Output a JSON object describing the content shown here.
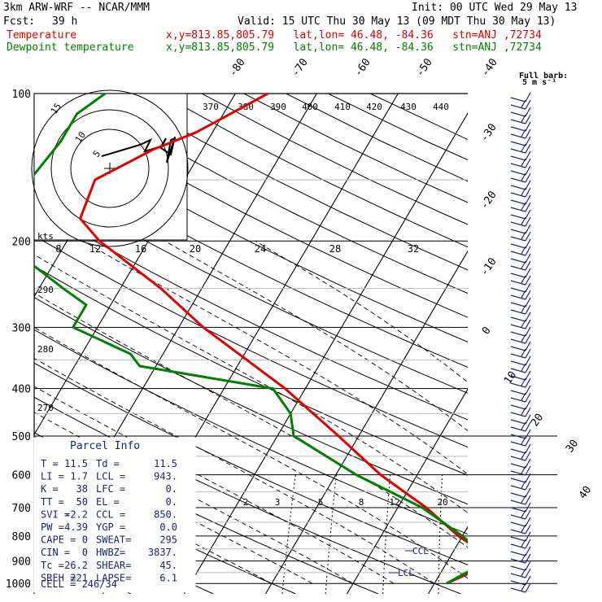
{
  "header": {
    "model": "3km ARW-WRF -- NCAR/MMM",
    "init": "Init: 00 UTC Wed 29 May 13",
    "fcst_label": "Fcst:",
    "fcst_value": "39 h",
    "valid": "Valid: 15 UTC Thu 30 May 13 (09 MDT Thu 30 May 13)",
    "temp_label": "Temperature",
    "temp_info": "x,y=813.85,805.79   lat,lon= 46.48, -84.36   stn=ANJ ,72734",
    "dew_label": "Dewpoint temperature",
    "dew_info": "x,y=813.85,805.79   lat,lon= 46.48, -84.36   stn=ANJ ,72734"
  },
  "barb_legend": {
    "line1": "Full barb:",
    "line2": "5 m s⁻¹"
  },
  "colors": {
    "temperature": "#e00000",
    "dewpoint": "#008000",
    "parcel": "#1a237e"
  },
  "chart_data": {
    "type": "line",
    "pressure_axis": [
      100,
      200,
      300,
      400,
      500,
      600,
      700,
      800,
      900,
      1000
    ],
    "temperature_ticks": [
      -80,
      -70,
      -60,
      -50,
      -40,
      -30,
      -20,
      -10,
      0,
      10,
      20,
      30,
      40
    ],
    "mixing_ratio_labels": [
      "2",
      "3",
      "5",
      "8",
      "12",
      "20"
    ],
    "theta_labels": [
      "290",
      "280",
      "270"
    ],
    "thetae_labels": [
      "370",
      "380",
      "390",
      "400",
      "410",
      "420",
      "430",
      "440"
    ],
    "hodograph_speed_labels": [
      "8",
      "12",
      "16",
      "20",
      "24",
      "28",
      "32"
    ],
    "hodograph_rings": [
      "5",
      "10",
      "15"
    ],
    "hodograph_unit": "kts",
    "series": [
      {
        "name": "Temperature",
        "p": [
          1000,
          925,
          850,
          800,
          700,
          600,
          500,
          400,
          300,
          250,
          200,
          180,
          150,
          130,
          120,
          100
        ],
        "t": [
          11.5,
          14.8,
          12.8,
          9.5,
          3.5,
          -4.5,
          -12.5,
          -22.5,
          -37,
          -45,
          -56,
          -60,
          -61,
          -56,
          -52,
          -46
        ]
      },
      {
        "name": "Dewpoint temperature",
        "p": [
          1000,
          925,
          900,
          850,
          800,
          700,
          600,
          500,
          450,
          400,
          360,
          340,
          300,
          270,
          250,
          200,
          150,
          125,
          110,
          100
        ],
        "t": [
          11.5,
          14.0,
          13.8,
          12.8,
          10.0,
          3.0,
          -7.5,
          -18,
          -20,
          -24,
          -42,
          -44,
          -53,
          -53,
          -57,
          -68,
          -69,
          -68,
          -68,
          -66
        ]
      }
    ],
    "levels": {
      "lcl": "LCL",
      "ccl": "CCL"
    }
  },
  "parcel_info": {
    "title": "Parcel Info",
    "rows": [
      [
        "T   =",
        "11.5",
        "Td  =",
        "11.5"
      ],
      [
        "LI  =",
        "1.7",
        "LCL =",
        "943."
      ],
      [
        "K   =",
        "38",
        "LFC =",
        "0."
      ],
      [
        "TT  =",
        "50",
        "EL  =",
        "0."
      ],
      [
        "SVI =",
        "-2.2",
        "CCL =",
        "850."
      ],
      [
        "PW  =",
        "4.39",
        "YGP =",
        "0.0"
      ],
      [
        "CAPE =",
        "0",
        "SWEAT=",
        "295"
      ],
      [
        "CIN  =",
        "0",
        "HWBZ=",
        "3837."
      ],
      [
        "Tc   =",
        "26.2",
        "SHEAR=",
        "45."
      ],
      [
        "SREH =",
        "221",
        "LAPSE=",
        "6.1"
      ]
    ],
    "cell": "CELL = 246/34"
  }
}
